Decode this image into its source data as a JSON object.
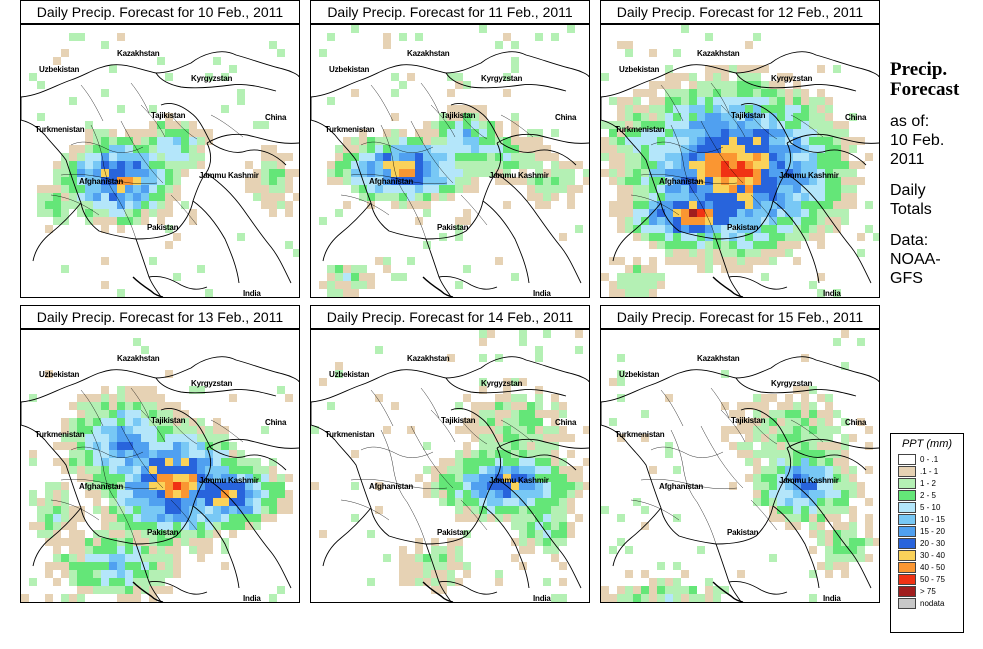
{
  "panels": [
    {
      "title": "Daily Precip. Forecast for  10 Feb., 2011"
    },
    {
      "title": "Daily Precip. Forecast for  11 Feb., 2011"
    },
    {
      "title": "Daily Precip. Forecast for  12 Feb., 2011"
    },
    {
      "title": "Daily Precip. Forecast for  13 Feb., 2011"
    },
    {
      "title": "Daily Precip. Forecast for  14 Feb., 2011"
    },
    {
      "title": "Daily Precip. Forecast for  15 Feb., 2011"
    }
  ],
  "map_labels": {
    "kazakhstan": "Kazakhstan",
    "uzbekistan": "Uzbekistan",
    "kyrgyzstan": "Kyrgyzstan",
    "tajikistan": "Tajikistan",
    "turkmenistan": "Turkmenistan",
    "china": "China",
    "afghanistan": "Afghanistan",
    "jammu_kashmir": "Jammu Kashmir",
    "pakistan": "Pakistan",
    "india": "India"
  },
  "side": {
    "title_line1": "Precip.",
    "title_line2": "Forecast",
    "asof_1": "as of:",
    "asof_2": "10 Feb.",
    "asof_3": "2011",
    "daily_1": "Daily",
    "daily_2": "Totals",
    "data_1": "Data:",
    "data_2": "NOAA-",
    "data_3": "GFS"
  },
  "legend": {
    "title": "PPT (mm)",
    "items": [
      {
        "label": "0 - .1",
        "color": "#ffffff"
      },
      {
        "label": ".1 - 1",
        "color": "#e6d2b4"
      },
      {
        "label": "1 - 2",
        "color": "#b4f0b4"
      },
      {
        "label": "2 - 5",
        "color": "#64e678"
      },
      {
        "label": "5 - 10",
        "color": "#b4e6fa"
      },
      {
        "label": "10 - 15",
        "color": "#78c8f5"
      },
      {
        "label": "15 - 20",
        "color": "#50a0f0"
      },
      {
        "label": "20 - 30",
        "color": "#2864dc"
      },
      {
        "label": "30 - 40",
        "color": "#fad25a"
      },
      {
        "label": "40 - 50",
        "color": "#fa9632"
      },
      {
        "label": "50 - 75",
        "color": "#f03214"
      },
      {
        "label": "> 75",
        "color": "#a01e1e"
      },
      {
        "label": "nodata",
        "color": "#c8c8c8"
      }
    ]
  }
}
